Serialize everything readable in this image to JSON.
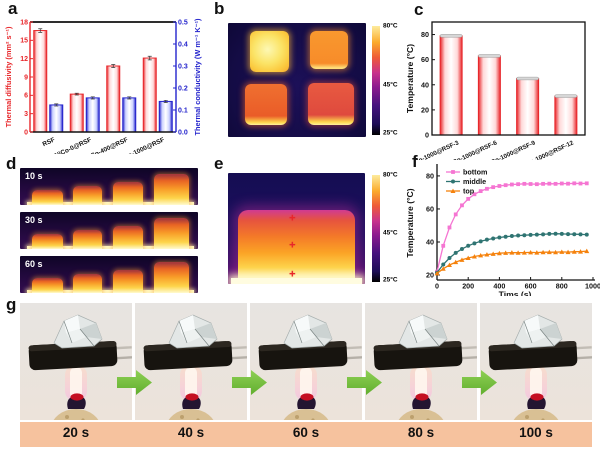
{
  "panels": {
    "a": {
      "label": "a"
    },
    "b": {
      "label": "b",
      "colorbar_ticks": [
        "80°C",
        "45°C",
        "25°C"
      ]
    },
    "c": {
      "label": "c"
    },
    "d": {
      "label": "d",
      "frame_times": [
        "10 s",
        "30 s",
        "60 s"
      ]
    },
    "e": {
      "label": "e",
      "colorbar_ticks": [
        "80°C",
        "45°C",
        "25°C"
      ],
      "marker_count": 3
    },
    "f": {
      "label": "f"
    },
    "g": {
      "label": "g",
      "frame_times": [
        "20 s",
        "40 s",
        "60 s",
        "80 s",
        "100 s"
      ]
    }
  },
  "chart_data": [
    {
      "panel": "a",
      "type": "bar",
      "categories": [
        "RSF",
        "NiCo-0@RSF",
        "NiCo-400@RSF",
        "NiCo-1000@RSF"
      ],
      "series": [
        {
          "name": "Thermal diffusivity",
          "axis": "left",
          "color": "#e8262a",
          "values": [
            16.6,
            6.2,
            10.8,
            12.1
          ],
          "errors": [
            0.3,
            0.15,
            0.25,
            0.3
          ]
        },
        {
          "name": "Thermal conductivity",
          "axis": "right",
          "color": "#2323cc",
          "values": [
            0.123,
            0.155,
            0.155,
            0.139
          ],
          "errors": [
            0.005,
            0.005,
            0.005,
            0.005
          ]
        }
      ],
      "left_axis": {
        "label": "Thermal diffusivity (mm² s⁻¹)",
        "min": 0,
        "max": 18,
        "ticks": [
          0,
          3,
          6,
          9,
          12,
          15,
          18
        ],
        "color": "#e8262a"
      },
      "right_axis": {
        "label": "Thermal conductivity (W m⁻¹ K⁻¹)",
        "min": 0,
        "max": 0.5,
        "ticks": [
          "0.0",
          "0.1",
          "0.2",
          "0.3",
          "0.4",
          "0.5"
        ],
        "color": "#2323cc"
      },
      "grid": false
    },
    {
      "panel": "c",
      "type": "bar",
      "categories": [
        "NiCo-1000@RSF-3",
        "NiCo-1000@RSF-6",
        "NiCo-1000@RSF-9",
        "NiCo-1000@RSF-12"
      ],
      "values": [
        79,
        63,
        45,
        31
      ],
      "title": "",
      "xlabel": "",
      "ylabel": "Temperature (°C)",
      "ylim": [
        0,
        90
      ],
      "yticks": [
        0,
        20,
        40,
        60,
        80
      ],
      "bar_color": "#e8262a",
      "grid": false
    },
    {
      "panel": "f",
      "type": "line",
      "xlabel": "Tims (s)",
      "ylabel": "Temperature (°C)",
      "xlim": [
        0,
        1000
      ],
      "ylim": [
        17,
        86
      ],
      "xticks": [
        0,
        200,
        400,
        600,
        800,
        1000
      ],
      "yticks": [
        20,
        40,
        60,
        80
      ],
      "legend_position": "top-left",
      "grid": false,
      "x": [
        0,
        40,
        80,
        120,
        160,
        200,
        240,
        280,
        320,
        360,
        400,
        440,
        480,
        520,
        560,
        600,
        640,
        680,
        720,
        760,
        800,
        840,
        880,
        920,
        960
      ],
      "series": [
        {
          "name": "bottom",
          "color": "#f575d2",
          "marker": "square",
          "values": [
            22.0,
            37.7,
            48.8,
            56.7,
            62.2,
            66.1,
            68.9,
            70.8,
            72.2,
            73.2,
            73.9,
            74.4,
            74.8,
            75.0,
            75.2,
            75.1,
            75.0,
            75.2,
            75.3,
            75.2,
            75.4,
            75.3,
            75.5,
            75.4,
            75.5
          ]
        },
        {
          "name": "middle",
          "color": "#2f7472",
          "marker": "circle",
          "values": [
            21.5,
            26.4,
            30.3,
            33.4,
            35.8,
            37.7,
            39.2,
            40.4,
            41.4,
            42.1,
            42.7,
            43.2,
            43.6,
            43.9,
            44.1,
            44.3,
            44.5,
            44.6,
            44.9,
            45.0,
            44.9,
            44.8,
            44.7,
            44.6,
            44.5
          ]
        },
        {
          "name": "top",
          "color": "#f5820d",
          "marker": "triangle",
          "values": [
            21.0,
            23.8,
            26.1,
            27.8,
            29.2,
            30.3,
            31.2,
            31.9,
            32.4,
            32.8,
            33.2,
            33.4,
            33.6,
            33.5,
            33.6,
            33.7,
            33.6,
            33.8,
            33.9,
            33.8,
            34.0,
            33.9,
            34.1,
            34.2,
            34.5
          ]
        }
      ]
    }
  ],
  "colors": {
    "accent_red": "#e8262a",
    "accent_blue": "#2323cc",
    "arrow_green": "#76c043",
    "strip_salmon": "#f6c29e",
    "ir_background": "#140c45"
  }
}
